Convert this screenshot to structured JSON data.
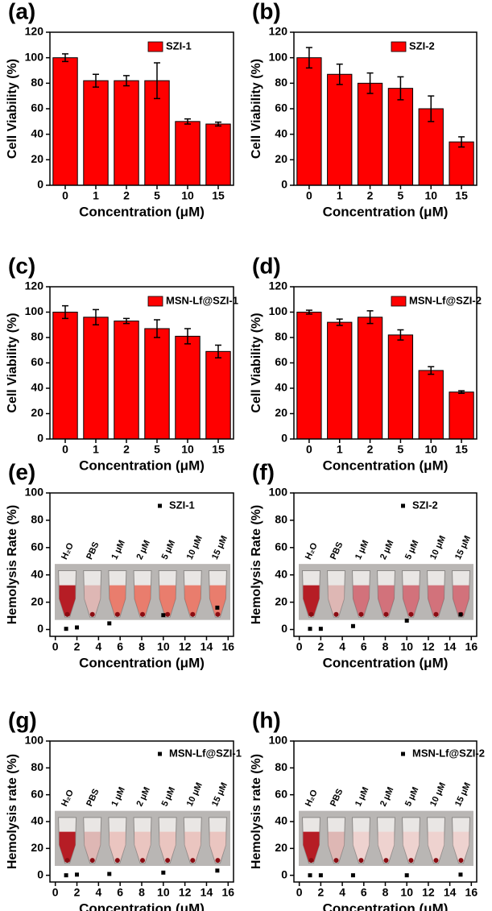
{
  "chart_data": [
    {
      "type": "bar",
      "label": "(a)",
      "xlabel": "Concentration (μM)",
      "ylabel": "Cell Viability (%)",
      "categories": [
        "0",
        "1",
        "2",
        "5",
        "10",
        "15"
      ],
      "series": [
        {
          "name": "SZI-1",
          "color": "#ff0000",
          "values": [
            100,
            82,
            82,
            82,
            50,
            48
          ],
          "errors": [
            3,
            5,
            4,
            14,
            2,
            1.5
          ]
        }
      ],
      "ylim": [
        0,
        120
      ],
      "yticks": [
        0,
        20,
        40,
        60,
        80,
        100,
        120
      ],
      "legend": "upper right"
    },
    {
      "type": "bar",
      "label": "(b)",
      "xlabel": "Concentration (μM)",
      "ylabel": "Cell Viability (%)",
      "categories": [
        "0",
        "1",
        "2",
        "5",
        "10",
        "15"
      ],
      "series": [
        {
          "name": "SZI-2",
          "color": "#ff0000",
          "values": [
            100,
            87,
            80,
            76,
            60,
            34
          ],
          "errors": [
            8,
            8,
            8,
            9,
            10,
            4
          ]
        }
      ],
      "ylim": [
        0,
        120
      ],
      "yticks": [
        0,
        20,
        40,
        60,
        80,
        100,
        120
      ],
      "legend": "upper right"
    },
    {
      "type": "bar",
      "label": "(c)",
      "xlabel": "Concentration (μM)",
      "ylabel": "Cell Viability (%)",
      "categories": [
        "0",
        "1",
        "2",
        "5",
        "10",
        "15"
      ],
      "series": [
        {
          "name": "MSN-Lf@SZI-1",
          "color": "#ff0000",
          "values": [
            100,
            96,
            93,
            87,
            81,
            69
          ],
          "errors": [
            5,
            6,
            2,
            7,
            6,
            5
          ]
        }
      ],
      "ylim": [
        0,
        120
      ],
      "yticks": [
        0,
        20,
        40,
        60,
        80,
        100,
        120
      ],
      "legend": "upper right"
    },
    {
      "type": "bar",
      "label": "(d)",
      "xlabel": "Concentration (μM)",
      "ylabel": "Cell Viability (%)",
      "categories": [
        "0",
        "1",
        "2",
        "5",
        "10",
        "15"
      ],
      "series": [
        {
          "name": "MSN-Lf@SZI-2",
          "color": "#ff0000",
          "values": [
            100,
            92,
            96,
            82,
            54,
            37
          ],
          "errors": [
            1.5,
            2.5,
            5,
            4,
            3,
            1
          ]
        }
      ],
      "ylim": [
        0,
        120
      ],
      "yticks": [
        0,
        20,
        40,
        60,
        80,
        100,
        120
      ],
      "legend": "upper right"
    },
    {
      "type": "scatter",
      "label": "(e)",
      "xlabel": "Concentration (μM)",
      "ylabel": "Hemolysis Rate (%)",
      "series": [
        {
          "name": "SZI-1",
          "color": "#000000",
          "x": [
            1,
            2,
            5,
            10,
            15
          ],
          "values": [
            0.5,
            1.5,
            4.5,
            10.5,
            16
          ]
        }
      ],
      "inset_labels": [
        "H₂O",
        "PBS",
        "1 μM",
        "2 μM",
        "5 μM",
        "10 μM",
        "15 μM"
      ],
      "xlim": [
        -0.5,
        16.5
      ],
      "xticks": [
        0,
        2,
        4,
        6,
        8,
        10,
        12,
        14,
        16
      ],
      "ylim": [
        -5,
        100
      ],
      "yticks": [
        0,
        20,
        40,
        60,
        80,
        100
      ],
      "legend": "upper right"
    },
    {
      "type": "scatter",
      "label": "(f)",
      "xlabel": "Concentration (μM)",
      "ylabel": "Hemolysis Rate (%)",
      "series": [
        {
          "name": "SZI-2",
          "color": "#000000",
          "x": [
            1,
            2,
            5,
            10,
            15
          ],
          "values": [
            0.5,
            0.5,
            2.5,
            6.5,
            11
          ]
        }
      ],
      "inset_labels": [
        "H₂O",
        "PBS",
        "1 μM",
        "2 μM",
        "5 μM",
        "10 μM",
        "15 μM"
      ],
      "xlim": [
        -0.5,
        16.5
      ],
      "xticks": [
        0,
        2,
        4,
        6,
        8,
        10,
        12,
        14,
        16
      ],
      "ylim": [
        -5,
        100
      ],
      "yticks": [
        0,
        20,
        40,
        60,
        80,
        100
      ],
      "legend": "upper right"
    },
    {
      "type": "scatter",
      "label": "(g)",
      "xlabel": "Concentration (μM)",
      "ylabel": "Hemolysis rate (%)",
      "series": [
        {
          "name": "MSN-Lf@SZI-1",
          "color": "#000000",
          "x": [
            1,
            2,
            5,
            10,
            15
          ],
          "values": [
            0,
            0.5,
            1,
            2,
            3.5
          ]
        }
      ],
      "inset_labels": [
        "H₂O",
        "PBS",
        "1 μM",
        "2 μM",
        "5 μM",
        "10 μM",
        "15 μM"
      ],
      "xlim": [
        -0.5,
        16.5
      ],
      "xticks": [
        0,
        2,
        4,
        6,
        8,
        10,
        12,
        14,
        16
      ],
      "ylim": [
        -5,
        100
      ],
      "yticks": [
        0,
        20,
        40,
        60,
        80,
        100
      ],
      "legend": "upper right"
    },
    {
      "type": "scatter",
      "label": "(h)",
      "xlabel": "Concentration (μM)",
      "ylabel": "Hemolysis rate (%)",
      "series": [
        {
          "name": "MSN-Lf@SZI-2",
          "color": "#000000",
          "x": [
            1,
            2,
            5,
            10,
            15
          ],
          "values": [
            0,
            0,
            0,
            0,
            0.5
          ]
        }
      ],
      "inset_labels": [
        "H₂O",
        "PBS",
        "1 μM",
        "2 μM",
        "5 μM",
        "10 μM",
        "15 μM"
      ],
      "xlim": [
        -0.5,
        16.5
      ],
      "xticks": [
        0,
        2,
        4,
        6,
        8,
        10,
        12,
        14,
        16
      ],
      "ylim": [
        -5,
        100
      ],
      "yticks": [
        0,
        20,
        40,
        60,
        80,
        100
      ],
      "legend": "upper right"
    }
  ]
}
